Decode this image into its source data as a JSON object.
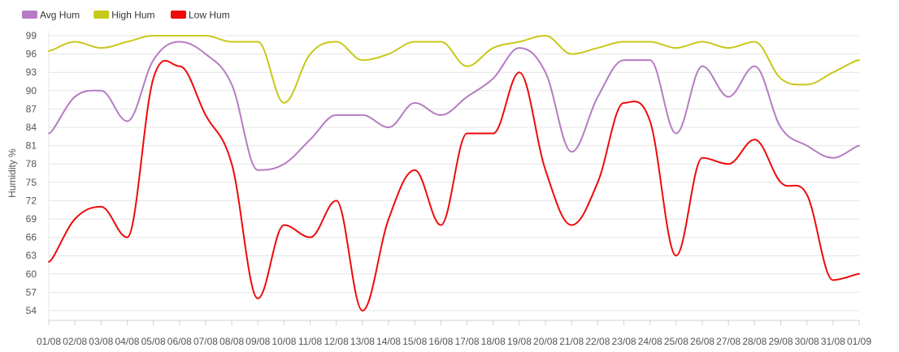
{
  "chart_data": {
    "type": "line",
    "title": "",
    "xlabel": "",
    "ylabel": "Humidity %",
    "ylim": [
      54,
      99
    ],
    "yticks": [
      54,
      57,
      60,
      63,
      66,
      69,
      72,
      75,
      78,
      81,
      84,
      87,
      90,
      93,
      96,
      99
    ],
    "grid": "horizontal",
    "legend_position": "top-left",
    "categories": [
      "01/08",
      "02/08",
      "03/08",
      "04/08",
      "05/08",
      "06/08",
      "07/08",
      "08/08",
      "09/08",
      "10/08",
      "11/08",
      "12/08",
      "13/08",
      "14/08",
      "15/08",
      "16/08",
      "17/08",
      "18/08",
      "19/08",
      "20/08",
      "21/08",
      "22/08",
      "23/08",
      "24/08",
      "25/08",
      "26/08",
      "27/08",
      "28/08",
      "29/08",
      "30/08",
      "31/08",
      "01/09"
    ],
    "series": [
      {
        "name": "Avg Hum",
        "color": "#b57cc2",
        "values": [
          83,
          89,
          90,
          85,
          95,
          98,
          96,
          91,
          77,
          78,
          82,
          86,
          86,
          84,
          88,
          86,
          89,
          92,
          97,
          93,
          80,
          89,
          95,
          95,
          83,
          94,
          89,
          94,
          84,
          81,
          79,
          81
        ]
      },
      {
        "name": "High Hum",
        "color": "#c8c81a",
        "values": [
          96.5,
          98,
          97,
          98,
          99,
          99,
          99,
          98,
          98,
          88,
          96,
          98,
          95,
          96,
          98,
          98,
          94,
          97,
          98,
          99,
          96,
          97,
          98,
          98,
          97,
          98,
          97,
          98,
          92,
          91,
          93,
          95
        ]
      },
      {
        "name": "Low Hum",
        "color": "#ee0a0a",
        "values": [
          62,
          69,
          71,
          66,
          92,
          94,
          86,
          78,
          56,
          68,
          66,
          72,
          54,
          69,
          77,
          68,
          83,
          83,
          93,
          77,
          68,
          75,
          88,
          85,
          63,
          79,
          78,
          82,
          75,
          73,
          59,
          60
        ]
      }
    ]
  }
}
